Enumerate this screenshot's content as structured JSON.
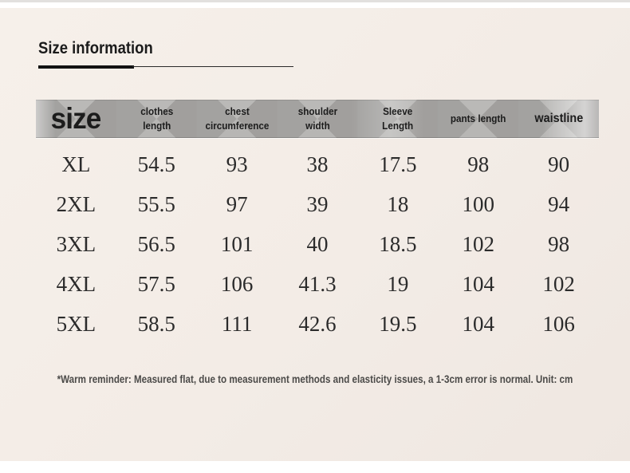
{
  "page": {
    "title": "Size information",
    "note": "*Warm reminder: Measured flat, due to measurement methods and elasticity issues, a 1-3cm error is normal. Unit: cm"
  },
  "table": {
    "columns": [
      {
        "label": "size"
      },
      {
        "label": "clothes\nlength"
      },
      {
        "label": "chest\ncircumference"
      },
      {
        "label": "shoulder\nwidth"
      },
      {
        "label": "Sleeve\nLength"
      },
      {
        "label": "pants length"
      },
      {
        "label": "waistline"
      }
    ],
    "rows": [
      {
        "label": "XL",
        "values": [
          "54.5",
          "93",
          "38",
          "17.5",
          "98",
          "90"
        ]
      },
      {
        "label": "2XL",
        "values": [
          "55.5",
          "97",
          "39",
          "18",
          "100",
          "94"
        ]
      },
      {
        "label": "3XL",
        "values": [
          "56.5",
          "101",
          "40",
          "18.5",
          "102",
          "98"
        ]
      },
      {
        "label": "4XL",
        "values": [
          "57.5",
          "106",
          "41.3",
          "19",
          "104",
          "102"
        ]
      },
      {
        "label": "5XL",
        "values": [
          "58.5",
          "111",
          "42.6",
          "19.5",
          "104",
          "106"
        ]
      }
    ]
  },
  "colors": {
    "page_background": "#f3ece6",
    "banner_base": "#aaa9a7",
    "banner_light": "#b8b7b5",
    "banner_dark": "#a19f9d",
    "title_text": "#1b1b1b",
    "data_text": "#2b2b2b",
    "note_text": "#4b4a48"
  }
}
